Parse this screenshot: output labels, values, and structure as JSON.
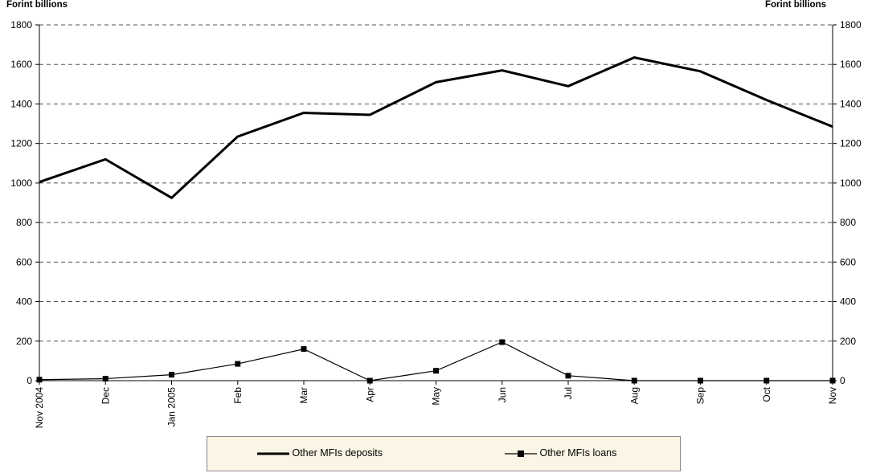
{
  "unit_left": "Forint billions",
  "unit_right": "Forint billions",
  "chart_data": {
    "type": "line",
    "categories": [
      "Nov 2004",
      "Dec",
      "Jan 2005",
      "Feb",
      "Mar",
      "Apr",
      "May",
      "Jun",
      "Jul",
      "Aug",
      "Sep",
      "Oct",
      "Nov"
    ],
    "series": [
      {
        "name": "Other MFIs deposits",
        "values": [
          1005,
          1120,
          925,
          1235,
          1355,
          1345,
          1510,
          1570,
          1490,
          1635,
          1565,
          1420,
          1285
        ]
      },
      {
        "name": "Other MFIs loans",
        "values": [
          5,
          10,
          30,
          85,
          160,
          0,
          50,
          195,
          25,
          0,
          0,
          0,
          0
        ]
      }
    ],
    "ylim": [
      0,
      1800
    ],
    "yticks": [
      0,
      200,
      400,
      600,
      800,
      1000,
      1200,
      1400,
      1600,
      1800
    ],
    "grid": true,
    "secondary_axis_mirrors_primary": true,
    "legend_position": "bottom",
    "colors": {
      "line": "#000000",
      "grid": "#555555",
      "legend_bg": "#fbf5e6"
    }
  }
}
